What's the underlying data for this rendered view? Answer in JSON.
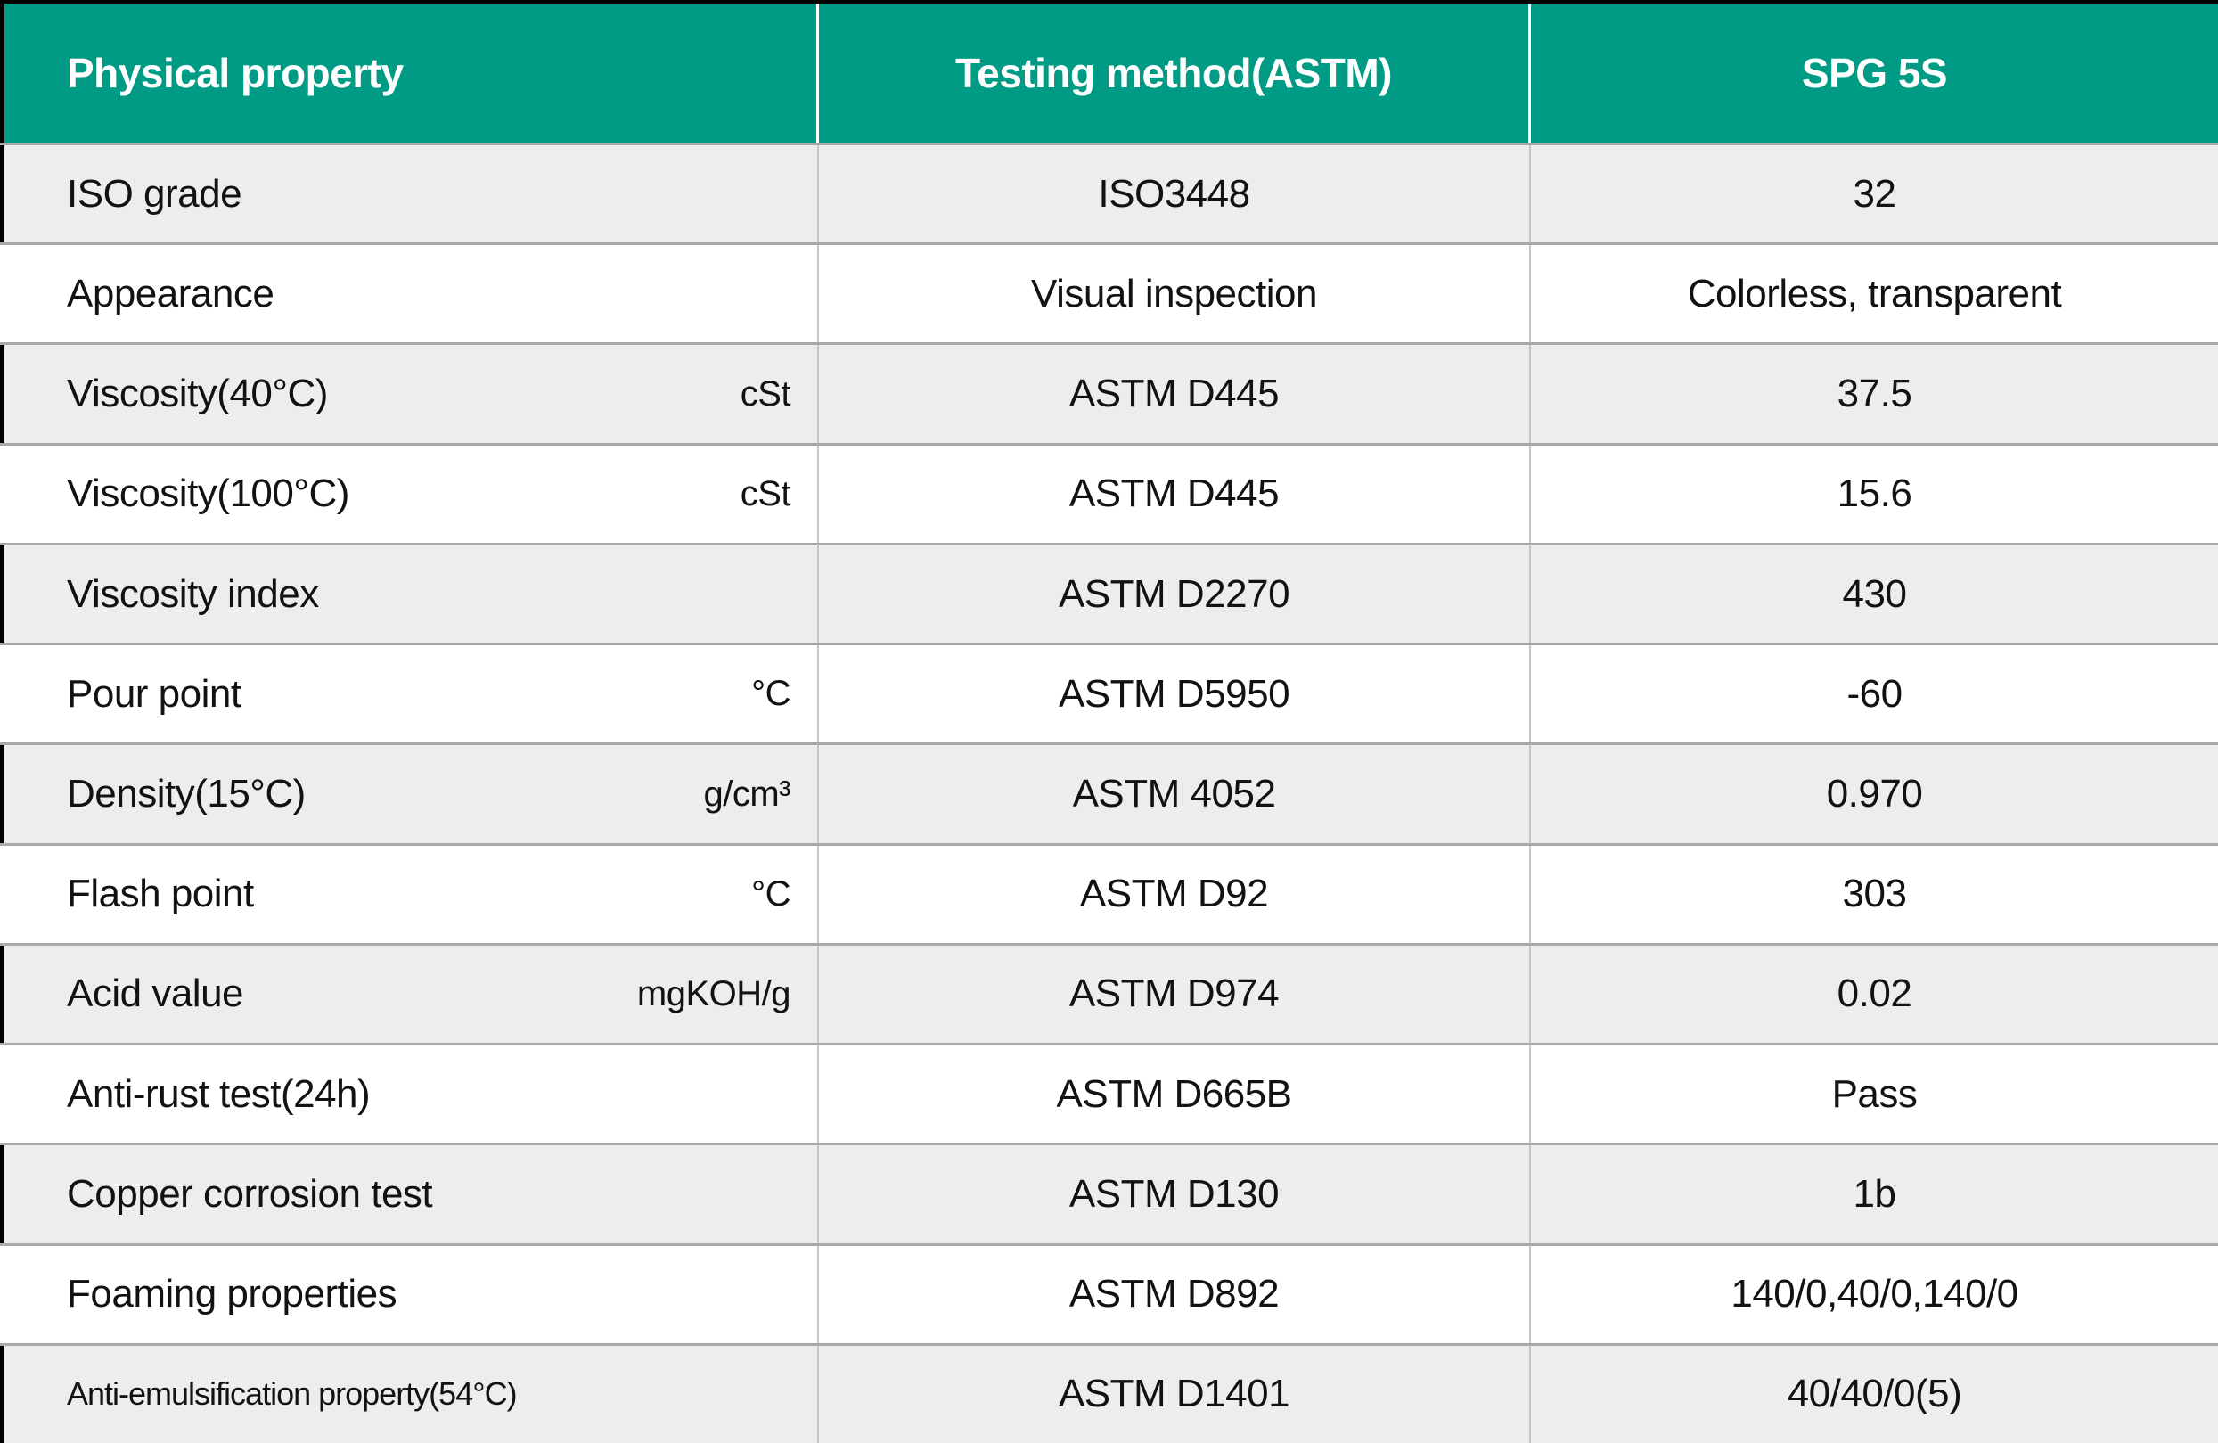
{
  "colors": {
    "header_background": "#009b84",
    "alt_row_background": "#ededed",
    "row_border": "#a9a9a9",
    "text": "#121212",
    "header_text": "#ffffff"
  },
  "table": {
    "columns": [
      {
        "label": "Physical property"
      },
      {
        "label": "Testing method(ASTM)"
      },
      {
        "label": "SPG 5S"
      }
    ],
    "rows": [
      {
        "property": "ISO grade",
        "unit": "",
        "method": "ISO3448",
        "value": "32"
      },
      {
        "property": "Appearance",
        "unit": "",
        "method": "Visual inspection",
        "value": "Colorless, transparent"
      },
      {
        "property": "Viscosity(40°C)",
        "unit": "cSt",
        "method": "ASTM D445",
        "value": "37.5"
      },
      {
        "property": "Viscosity(100°C)",
        "unit": "cSt",
        "method": "ASTM D445",
        "value": "15.6"
      },
      {
        "property": "Viscosity index",
        "unit": "",
        "method": "ASTM D2270",
        "value": "430"
      },
      {
        "property": "Pour point",
        "unit": "°C",
        "method": "ASTM D5950",
        "value": "-60"
      },
      {
        "property": "Density(15°C)",
        "unit": "g/cm³",
        "method": "ASTM 4052",
        "value": "0.970"
      },
      {
        "property": "Flash point",
        "unit": "°C",
        "method": "ASTM D92",
        "value": "303"
      },
      {
        "property": "Acid value",
        "unit": "mgKOH/g",
        "method": "ASTM D974",
        "value": "0.02"
      },
      {
        "property": "Anti-rust test(24h)",
        "unit": "",
        "method": "ASTM D665B",
        "value": "Pass"
      },
      {
        "property": "Copper corrosion test",
        "unit": "",
        "method": "ASTM D130",
        "value": "1b"
      },
      {
        "property": "Foaming properties",
        "unit": "",
        "method": "ASTM D892",
        "value": "140/0,40/0,140/0"
      },
      {
        "property": "Anti-emulsification property(54°C)",
        "unit": "",
        "method": "ASTM D1401",
        "value": "40/40/0(5)"
      }
    ]
  }
}
